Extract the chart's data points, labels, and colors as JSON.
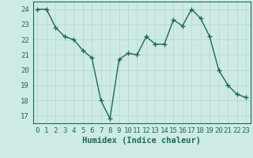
{
  "x": [
    0,
    1,
    2,
    3,
    4,
    5,
    6,
    7,
    8,
    9,
    10,
    11,
    12,
    13,
    14,
    15,
    16,
    17,
    18,
    19,
    20,
    21,
    22,
    23
  ],
  "y": [
    24.0,
    24.0,
    22.8,
    22.2,
    22.0,
    21.3,
    20.8,
    18.0,
    16.8,
    20.7,
    21.1,
    21.0,
    22.2,
    21.7,
    21.7,
    23.3,
    22.9,
    24.0,
    23.4,
    22.2,
    20.0,
    19.0,
    18.4,
    18.2
  ],
  "line_color": "#1a6b5a",
  "marker": "+",
  "marker_size": 4,
  "bg_color": "#ceeae4",
  "grid_color": "#b8d8d2",
  "xlabel": "Humidex (Indice chaleur)",
  "ylim": [
    16.5,
    24.5
  ],
  "xlim": [
    -0.5,
    23.5
  ],
  "yticks": [
    17,
    18,
    19,
    20,
    21,
    22,
    23,
    24
  ],
  "xticks": [
    0,
    1,
    2,
    3,
    4,
    5,
    6,
    7,
    8,
    9,
    10,
    11,
    12,
    13,
    14,
    15,
    16,
    17,
    18,
    19,
    20,
    21,
    22,
    23
  ],
  "tick_label_color": "#1a6b5a",
  "tick_label_fontsize": 6.5,
  "xlabel_fontsize": 7.5,
  "linewidth": 1.0,
  "marker_linewidth": 1.0
}
